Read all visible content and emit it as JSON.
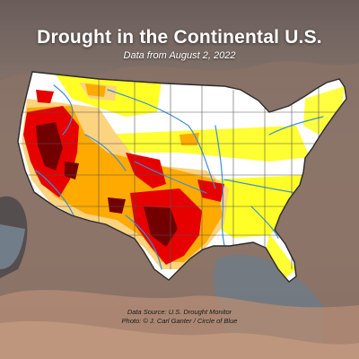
{
  "title": "Drought in the Continental U.S.",
  "subtitle": "Data from August 2, 2022",
  "credits": {
    "source": "Data Source: U.S. Drought Monitor",
    "photo": "Photo: © J. Carl Ganter / Circle of Blue"
  },
  "colors": {
    "no_drought": "#ffffff",
    "abnormally_dry": "#ffff00",
    "moderate": "#fcd37f",
    "severe": "#ffaa00",
    "extreme": "#e60000",
    "exceptional": "#730000",
    "rivers": "#3b8fd6",
    "borders": "#555555"
  }
}
